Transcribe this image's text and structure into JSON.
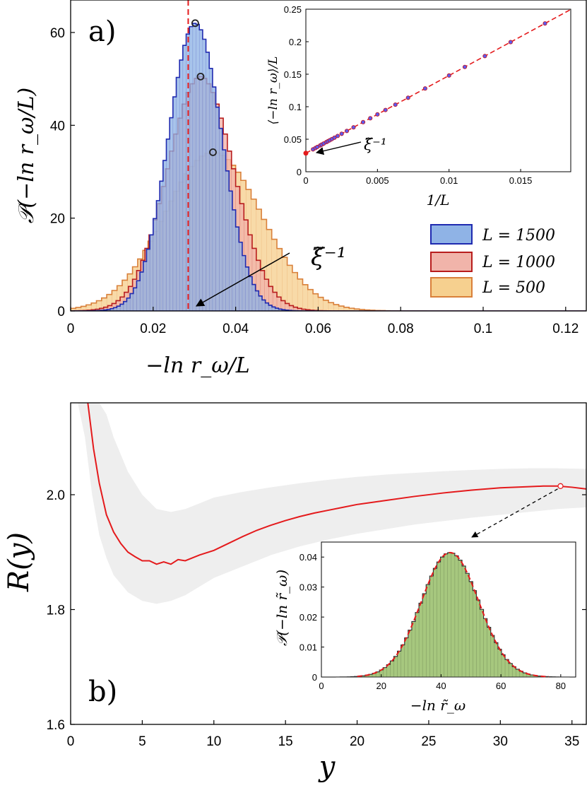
{
  "chart_data": [
    {
      "type": "histogram",
      "panel_label": "a)",
      "xlabel": "−ln r_ω/L",
      "ylabel": "𝒫(−ln r_ω/L)",
      "xlim": [
        0,
        0.125
      ],
      "ylim": [
        0,
        67
      ],
      "xticks": [
        "0",
        "0.02",
        "0.04",
        "0.06",
        "0.08",
        "0.1",
        "0.12"
      ],
      "yticks": [
        "0",
        "20",
        "40",
        "60"
      ],
      "reference_line": {
        "x": 0.0285,
        "style": "red dashed"
      },
      "annotation": "ξ̃⁻¹",
      "series": [
        {
          "name": "L = 500",
          "mean": 0.0345,
          "sd": 0.0118,
          "peak": 34.2,
          "bin": 0.00125,
          "edge": "#d9803a",
          "fill": "#f6d08f"
        },
        {
          "name": "L = 1000",
          "mean": 0.0315,
          "sd": 0.008,
          "peak": 50.5,
          "bin": 0.001,
          "edge": "#b81d1d",
          "fill": "#f1b4aa"
        },
        {
          "name": "L = 1500",
          "mean": 0.0302,
          "sd": 0.0065,
          "peak": 62.0,
          "bin": 0.0008,
          "edge": "#1f2ab0",
          "fill": "#8fb3e6"
        }
      ],
      "legend": [
        "L = 1500",
        "L = 1000",
        "L = 500"
      ],
      "inset": {
        "type": "scatter",
        "xlabel": "1/L",
        "ylabel": "⟨−ln r_ω⟩/L",
        "xlim": [
          0,
          0.0185
        ],
        "ylim": [
          0,
          0.25
        ],
        "xticks": [
          "0",
          "0.005",
          "0.01",
          "0.015"
        ],
        "yticks": [
          "0",
          "0.05",
          "0.1",
          "0.15",
          "0.2",
          "0.25"
        ],
        "fit": {
          "intercept": 0.0285,
          "slope": 11.95
        },
        "x": [
          0.0005,
          0.00067,
          0.0008,
          0.001,
          0.00111,
          0.00125,
          0.00143,
          0.00154,
          0.00167,
          0.00182,
          0.002,
          0.00222,
          0.0025,
          0.00286,
          0.00333,
          0.004,
          0.0045,
          0.005,
          0.00556,
          0.00625,
          0.00714,
          0.00833,
          0.01,
          0.0111,
          0.0125,
          0.0143,
          0.0167
        ],
        "annotation": "ξ̃⁻¹"
      }
    },
    {
      "type": "line",
      "panel_label": "b)",
      "xlabel": "y",
      "ylabel": "R(y)",
      "xlim": [
        0,
        36
      ],
      "ylim": [
        1.6,
        2.16
      ],
      "xticks": [
        "0",
        "5",
        "10",
        "15",
        "20",
        "25",
        "30",
        "35"
      ],
      "yticks": [
        "1.6",
        "1.8",
        "2.0"
      ],
      "series": [
        {
          "name": "R(y)",
          "color": "#e41a1c",
          "x": [
            1.2,
            1.6,
            2,
            2.5,
            3,
            3.5,
            4,
            4.5,
            5,
            5.5,
            6,
            6.5,
            7,
            7.5,
            8,
            9,
            10,
            11,
            12,
            13,
            14,
            15,
            16,
            17,
            18,
            19,
            20,
            22,
            24,
            26,
            28,
            30,
            32,
            33,
            34,
            35,
            36
          ],
          "y": [
            2.16,
            2.08,
            2.02,
            1.965,
            1.935,
            1.915,
            1.9,
            1.892,
            1.888,
            1.882,
            1.882,
            1.88,
            1.882,
            1.884,
            1.888,
            1.895,
            1.903,
            1.915,
            1.927,
            1.938,
            1.947,
            1.955,
            1.962,
            1.968,
            1.973,
            1.978,
            1.983,
            1.99,
            1.997,
            2.003,
            2.008,
            2.012,
            2.014,
            2.015,
            2.015,
            2.013,
            2.01
          ]
        },
        {
          "name": "band",
          "color": "#eeeeee",
          "x": [
            0.5,
            1,
            1.5,
            2,
            2.5,
            3,
            4,
            5,
            6,
            7,
            8,
            9,
            10,
            12,
            14,
            16,
            18,
            20,
            22,
            24,
            26,
            28,
            30,
            32,
            34,
            36
          ],
          "upper": [
            2.16,
            2.16,
            2.16,
            2.16,
            2.14,
            2.1,
            2.04,
            2.0,
            1.975,
            1.97,
            1.975,
            1.985,
            1.995,
            2.005,
            2.013,
            2.02,
            2.026,
            2.031,
            2.035,
            2.038,
            2.041,
            2.043,
            2.045,
            2.046,
            2.046,
            2.045
          ],
          "lower": [
            2.16,
            2.1,
            2.0,
            1.93,
            1.89,
            1.86,
            1.83,
            1.815,
            1.81,
            1.815,
            1.825,
            1.84,
            1.855,
            1.875,
            1.895,
            1.91,
            1.922,
            1.932,
            1.94,
            1.948,
            1.954,
            1.96,
            1.965,
            1.97,
            1.975,
            1.978
          ]
        }
      ],
      "marker": {
        "x": 34.2,
        "y": 2.015
      },
      "inset": {
        "type": "histogram",
        "xlabel": "−ln r̃_ω",
        "ylabel": "𝒫(−ln r̃_ω)",
        "xlim": [
          0,
          85
        ],
        "ylim": [
          0,
          0.045
        ],
        "xticks": [
          "0",
          "20",
          "40",
          "60",
          "80"
        ],
        "yticks": [
          "0",
          "0.01",
          "0.02",
          "0.03",
          "0.04"
        ],
        "distribution": {
          "mean": 43,
          "sd": 9.6,
          "peak": 0.0415,
          "bin": 1.2,
          "fill": "#a6c77e"
        },
        "fit_color": "#e41a1c"
      }
    }
  ]
}
